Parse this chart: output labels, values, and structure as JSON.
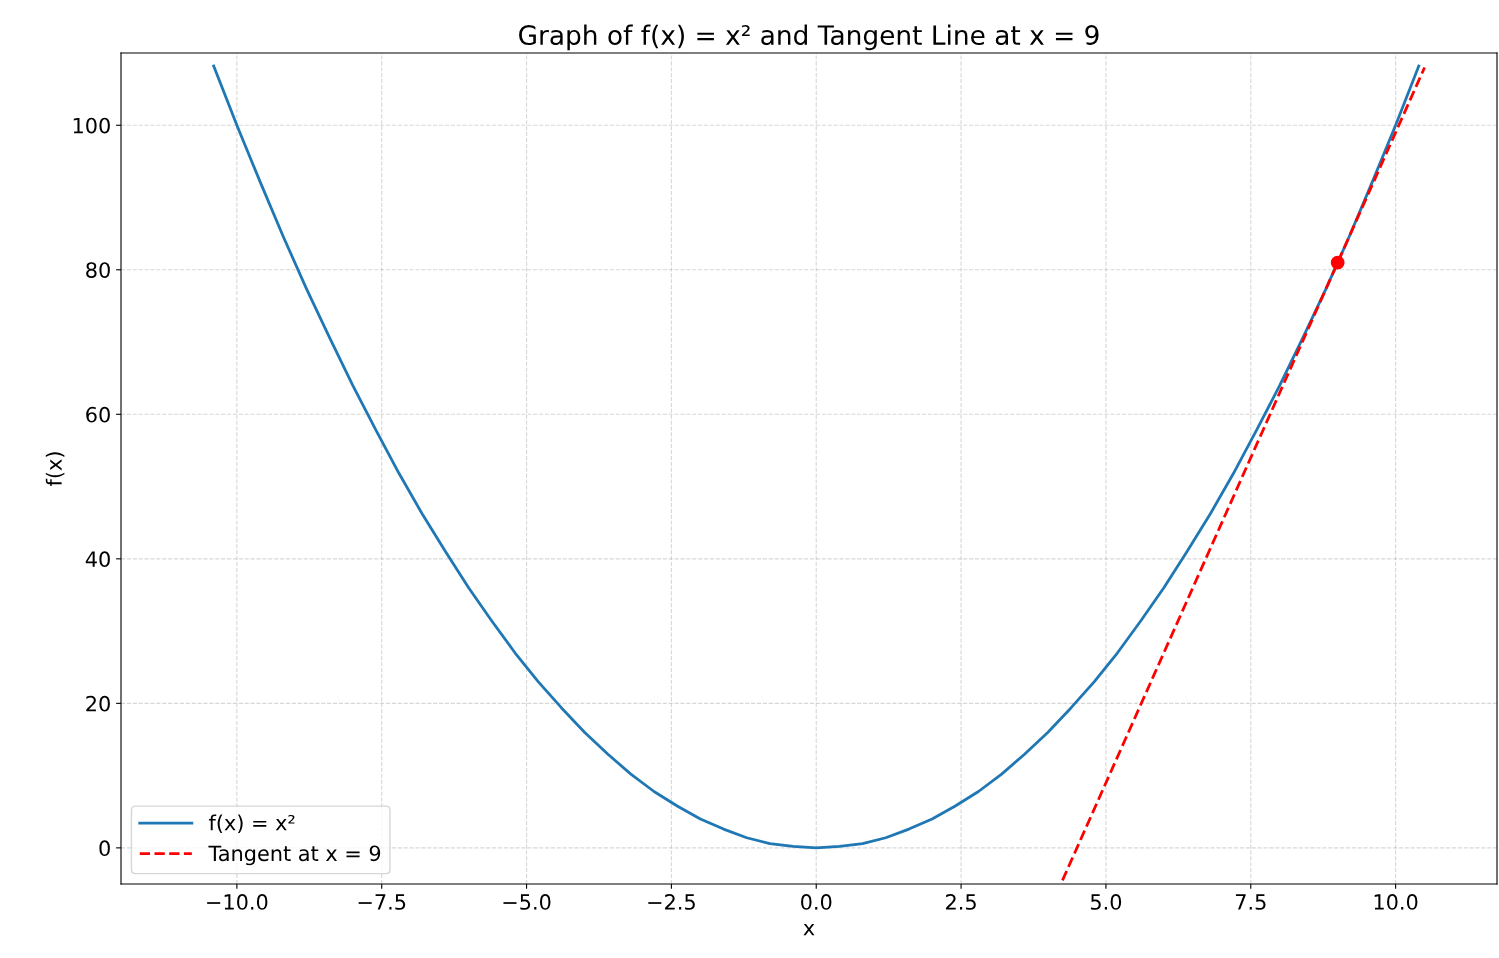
{
  "chart_data": {
    "type": "line",
    "title": "Graph of f(x) = x² and Tangent Line at x = 9",
    "xlabel": "x",
    "ylabel": "f(x)",
    "xlim": [
      -12,
      11.75
    ],
    "ylim": [
      -5,
      110
    ],
    "xticks": [
      {
        "value": -10,
        "label": "−10.0"
      },
      {
        "value": -7.5,
        "label": "−7.5"
      },
      {
        "value": -5,
        "label": "−5.0"
      },
      {
        "value": -2.5,
        "label": "−2.5"
      },
      {
        "value": 0,
        "label": "0.0"
      },
      {
        "value": 2.5,
        "label": "2.5"
      },
      {
        "value": 5,
        "label": "5.0"
      },
      {
        "value": 7.5,
        "label": "7.5"
      },
      {
        "value": 10,
        "label": "10.0"
      }
    ],
    "yticks": [
      0,
      20,
      40,
      60,
      80,
      100
    ],
    "grid": true,
    "legend": "bottom left",
    "series": [
      {
        "name": "f(x) = x²",
        "color": "#1f77b4",
        "line_style": "solid",
        "x": [
          -10.4,
          -10,
          -9.6,
          -9.2,
          -8.8,
          -8.4,
          -8,
          -7.6,
          -7.2,
          -6.8,
          -6.4,
          -6,
          -5.6,
          -5.2,
          -4.8,
          -4.4,
          -4,
          -3.6,
          -3.2,
          -2.8,
          -2.4,
          -2,
          -1.6,
          -1.2,
          -0.8,
          -0.4,
          0,
          0.4,
          0.8,
          1.2,
          1.6,
          2,
          2.4,
          2.8,
          3.2,
          3.6,
          4,
          4.4,
          4.8,
          5.2,
          5.6,
          6,
          6.4,
          6.8,
          7.2,
          7.6,
          8,
          8.4,
          8.8,
          9.2,
          9.6,
          10,
          10.4
        ],
        "values": [
          108.2,
          100,
          92.2,
          84.6,
          77.4,
          70.6,
          64,
          57.8,
          51.8,
          46.2,
          41,
          36,
          31.4,
          27,
          23,
          19.4,
          16,
          13,
          10.2,
          7.8,
          5.8,
          4,
          2.6,
          1.4,
          0.6,
          0.2,
          0,
          0.2,
          0.6,
          1.4,
          2.6,
          4,
          5.8,
          7.8,
          10.2,
          13,
          16,
          19.4,
          23,
          27,
          31.4,
          36,
          41,
          46.2,
          51.8,
          57.8,
          64,
          70.6,
          77.4,
          84.6,
          92.2,
          100,
          108.2
        ]
      },
      {
        "name": "Tangent at x = 9",
        "color": "#ff0000",
        "line_style": "dashed",
        "x": [
          4.25,
          10.5
        ],
        "values": [
          -4.5,
          108
        ]
      },
      {
        "type": "scatter",
        "color": "#ff0000",
        "marker": "circle",
        "x": [
          9
        ],
        "values": [
          81
        ]
      }
    ]
  }
}
